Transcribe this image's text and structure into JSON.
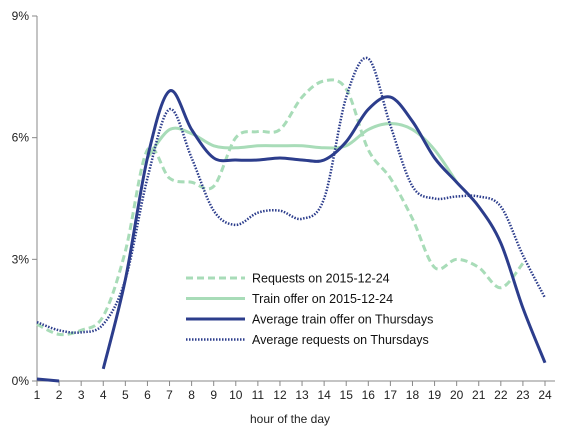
{
  "chart_data": {
    "type": "line",
    "title": "",
    "xlabel": "hour of the day",
    "ylabel": "",
    "x": [
      1,
      2,
      3,
      4,
      5,
      6,
      7,
      8,
      9,
      10,
      11,
      12,
      13,
      14,
      15,
      16,
      17,
      18,
      19,
      20,
      21,
      22,
      23,
      24
    ],
    "xlim": [
      1,
      24
    ],
    "ylim": [
      0,
      9
    ],
    "yticks": [
      0,
      3,
      6,
      9
    ],
    "ytick_labels": [
      "0%",
      "3%",
      "6%",
      "9%"
    ],
    "grid": false,
    "legend_position": "center-bottom",
    "series": [
      {
        "name": "Requests on 2015-12-24",
        "color": "#a8dcb8",
        "style": "dashed",
        "values": [
          1.4,
          1.15,
          1.25,
          1.6,
          3.2,
          5.7,
          5.0,
          4.9,
          4.8,
          6.0,
          6.15,
          6.2,
          7.0,
          7.4,
          7.2,
          5.7,
          5.0,
          4.0,
          2.8,
          3.0,
          2.8,
          2.3,
          2.9,
          null
        ]
      },
      {
        "name": "Train offer on 2015-12-24",
        "color": "#a8dcb8",
        "style": "solid",
        "values": [
          null,
          null,
          null,
          null,
          null,
          5.5,
          6.2,
          6.1,
          5.8,
          5.75,
          5.8,
          5.8,
          5.8,
          5.75,
          5.8,
          6.2,
          6.35,
          6.2,
          5.7,
          4.9,
          null,
          null,
          null,
          null
        ]
      },
      {
        "name": "Average train offer on Thursdays",
        "color": "#2c3d8c",
        "style": "solid",
        "values": [
          0.05,
          0.0,
          null,
          0.3,
          2.5,
          5.5,
          7.15,
          6.2,
          5.5,
          5.45,
          5.45,
          5.5,
          5.45,
          5.45,
          5.9,
          6.7,
          7.0,
          6.4,
          5.5,
          4.9,
          4.3,
          3.4,
          1.8,
          0.45
        ]
      },
      {
        "name": "Average requests on Thursdays",
        "color": "#2c3d8c",
        "style": "dotted",
        "values": [
          1.45,
          1.25,
          1.2,
          1.4,
          2.5,
          5.0,
          6.7,
          5.5,
          4.2,
          3.85,
          4.15,
          4.2,
          4.0,
          4.5,
          7.0,
          7.95,
          6.3,
          4.8,
          4.5,
          4.55,
          4.55,
          4.3,
          3.1,
          2.05
        ]
      }
    ]
  }
}
